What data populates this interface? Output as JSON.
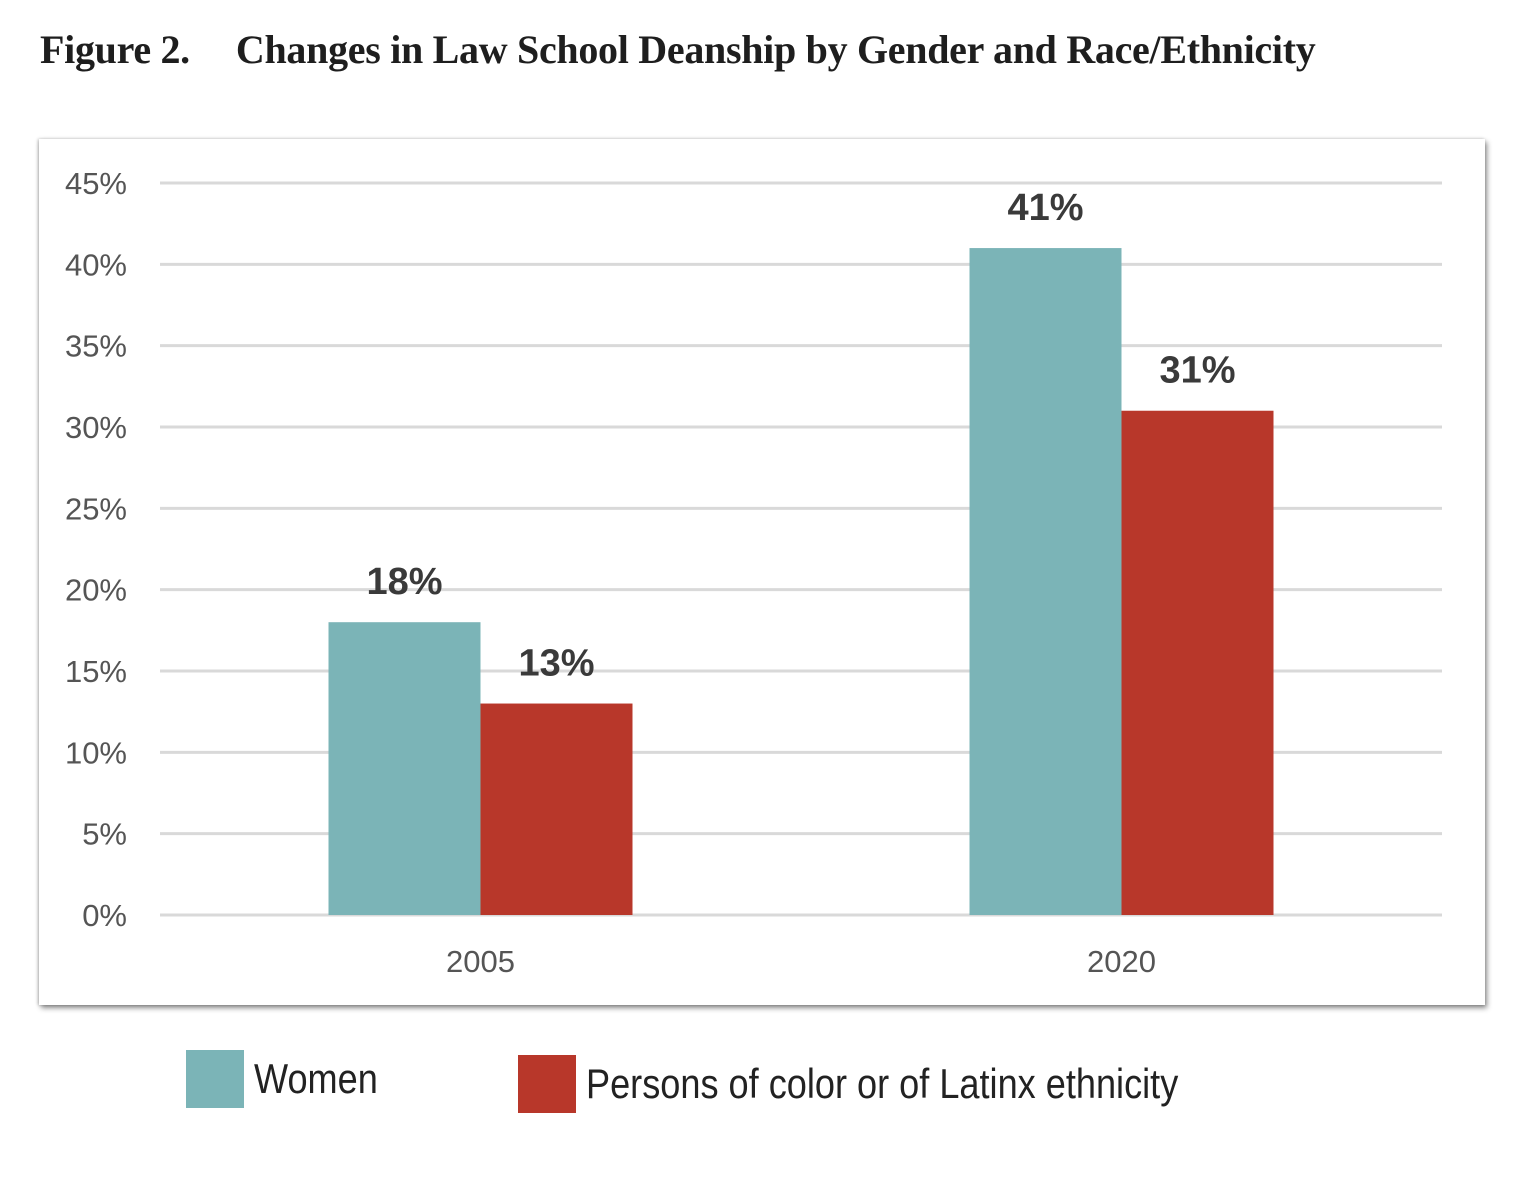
{
  "figure": {
    "number": "Figure 2.",
    "title": "Changes in Law School Deanship by Gender and Race/Ethnicity"
  },
  "colors": {
    "women": "#7bb4b7",
    "poc": "#b8372a",
    "gridline": "#d9d9d9",
    "tick_text": "#555555",
    "label_text": "#3a3a3a"
  },
  "chart_data": {
    "type": "bar",
    "title": "Changes in Law School Deanship by Gender and Race/Ethnicity",
    "xlabel": "",
    "ylabel": "",
    "categories": [
      "2005",
      "2020"
    ],
    "series": [
      {
        "name": "Women",
        "values": [
          18,
          41
        ],
        "labels": [
          "18%",
          "41%"
        ],
        "color": "#7bb4b7"
      },
      {
        "name": "Persons of color or of Latinx ethnicity",
        "values": [
          13,
          31
        ],
        "labels": [
          "13%",
          "31%"
        ],
        "color": "#b8372a"
      }
    ],
    "ylim": [
      0,
      45
    ],
    "yticks": [
      0,
      5,
      10,
      15,
      20,
      25,
      30,
      35,
      40,
      45
    ],
    "ytick_labels": [
      "0%",
      "5%",
      "10%",
      "15%",
      "20%",
      "25%",
      "30%",
      "35%",
      "40%",
      "45%"
    ],
    "grid": true,
    "legend_position": "bottom"
  },
  "legend": {
    "items": [
      {
        "label": "Women",
        "color": "#7bb4b7"
      },
      {
        "label": "Persons of color or of Latinx ethnicity",
        "color": "#b8372a"
      }
    ]
  }
}
